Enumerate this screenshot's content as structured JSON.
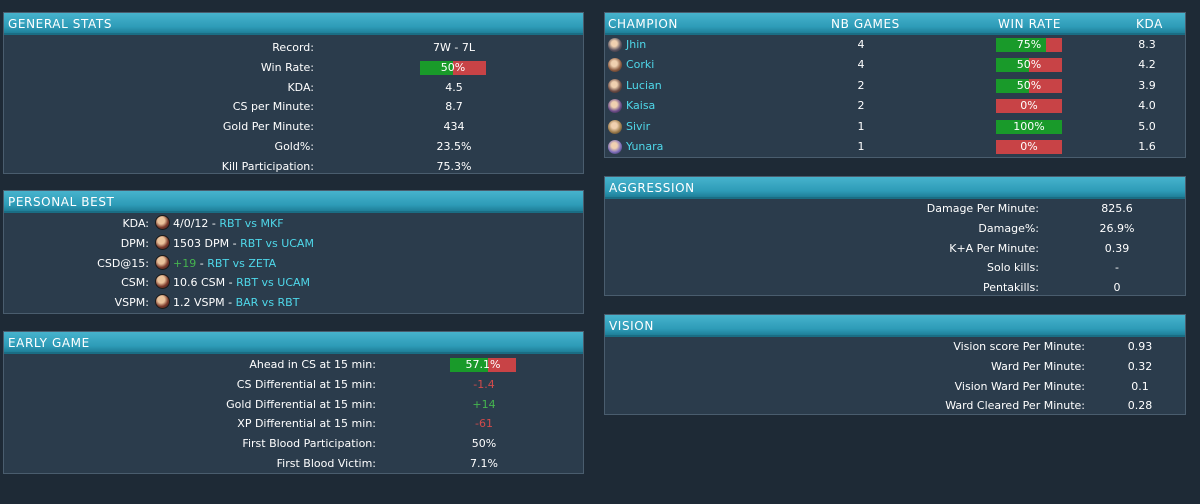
{
  "general": {
    "title": "GENERAL STATS",
    "rows": [
      {
        "label": "Record:",
        "value": "7W - 7L"
      },
      {
        "label": "Win Rate:",
        "value": "50%",
        "bar": 0.5
      },
      {
        "label": "KDA:",
        "value": "4.5"
      },
      {
        "label": "CS per Minute:",
        "value": "8.7"
      },
      {
        "label": "Gold Per Minute:",
        "value": "434"
      },
      {
        "label": "Gold%:",
        "value": "23.5%"
      },
      {
        "label": "Kill Participation:",
        "value": "75.3%"
      }
    ]
  },
  "personal_best": {
    "title": "PERSONAL BEST",
    "rows": [
      {
        "label": "KDA:",
        "stat": "4/0/12",
        "stat_color": "white",
        "sep": " - ",
        "match": "RBT vs MKF"
      },
      {
        "label": "DPM:",
        "stat": "1503 DPM",
        "stat_color": "white",
        "sep": " - ",
        "match": "RBT vs UCAM"
      },
      {
        "label": "CSD@15:",
        "stat": "+19",
        "stat_color": "green",
        "sep": " - ",
        "match": "RBT vs ZETA"
      },
      {
        "label": "CSM:",
        "stat": "10.6 CSM",
        "stat_color": "white",
        "sep": " - ",
        "match": "RBT vs UCAM"
      },
      {
        "label": "VSPM:",
        "stat": "1.2 VSPM",
        "stat_color": "white",
        "sep": " - ",
        "match": "BAR vs RBT"
      }
    ]
  },
  "early_game": {
    "title": "EARLY GAME",
    "rows": [
      {
        "label": "Ahead in CS at 15 min:",
        "value": "57.1%",
        "bar": 0.571,
        "color": "white"
      },
      {
        "label": "CS Differential at 15 min:",
        "value": "-1.4",
        "color": "red"
      },
      {
        "label": "Gold Differential at 15 min:",
        "value": "+14",
        "color": "green"
      },
      {
        "label": "XP Differential at 15 min:",
        "value": "-61",
        "color": "red"
      },
      {
        "label": "First Blood Participation:",
        "value": "50%",
        "color": "white"
      },
      {
        "label": "First Blood Victim:",
        "value": "7.1%",
        "color": "white"
      }
    ]
  },
  "champions": {
    "headers": {
      "champion": "CHAMPION",
      "games": "NB GAMES",
      "winrate": "WIN RATE",
      "kda": "KDA"
    },
    "rows": [
      {
        "name": "Jhin",
        "games": "4",
        "winrate": "75%",
        "win": 0.75,
        "kda": "8.3",
        "icon_color": "#5a5260"
      },
      {
        "name": "Corki",
        "games": "4",
        "winrate": "50%",
        "win": 0.5,
        "kda": "4.2",
        "icon_color": "#8a5a40"
      },
      {
        "name": "Lucian",
        "games": "2",
        "winrate": "50%",
        "win": 0.5,
        "kda": "3.9",
        "icon_color": "#6a4a44"
      },
      {
        "name": "Kaisa",
        "games": "2",
        "winrate": "0%",
        "win": 0.0,
        "kda": "4.0",
        "icon_color": "#6a4a8a"
      },
      {
        "name": "Sivir",
        "games": "1",
        "winrate": "100%",
        "win": 1.0,
        "kda": "5.0",
        "icon_color": "#9a7a4a"
      },
      {
        "name": "Yunara",
        "games": "1",
        "winrate": "0%",
        "win": 0.0,
        "kda": "1.6",
        "icon_color": "#7a6aba"
      }
    ]
  },
  "aggression": {
    "title": "AGGRESSION",
    "rows": [
      {
        "label": "Damage Per Minute:",
        "value": "825.6"
      },
      {
        "label": "Damage%:",
        "value": "26.9%"
      },
      {
        "label": "K+A Per Minute:",
        "value": "0.39"
      },
      {
        "label": "Solo kills:",
        "value": "-"
      },
      {
        "label": "Pentakills:",
        "value": "0"
      }
    ]
  },
  "vision": {
    "title": "VISION",
    "rows": [
      {
        "label": "Vision score Per Minute:",
        "value": "0.93"
      },
      {
        "label": "Ward Per Minute:",
        "value": "0.32"
      },
      {
        "label": "Vision Ward Per Minute:",
        "value": "0.1"
      },
      {
        "label": "Ward Cleared Per Minute:",
        "value": "0.28"
      }
    ]
  },
  "colors": {
    "background": "#1e2a36",
    "panel": "#2b3c4c",
    "header": "#2d9bb7",
    "win": "#199a2a",
    "loss": "#c84346",
    "link": "#4fd8ea",
    "positive": "#45b54f",
    "negative": "#d24b4b"
  }
}
